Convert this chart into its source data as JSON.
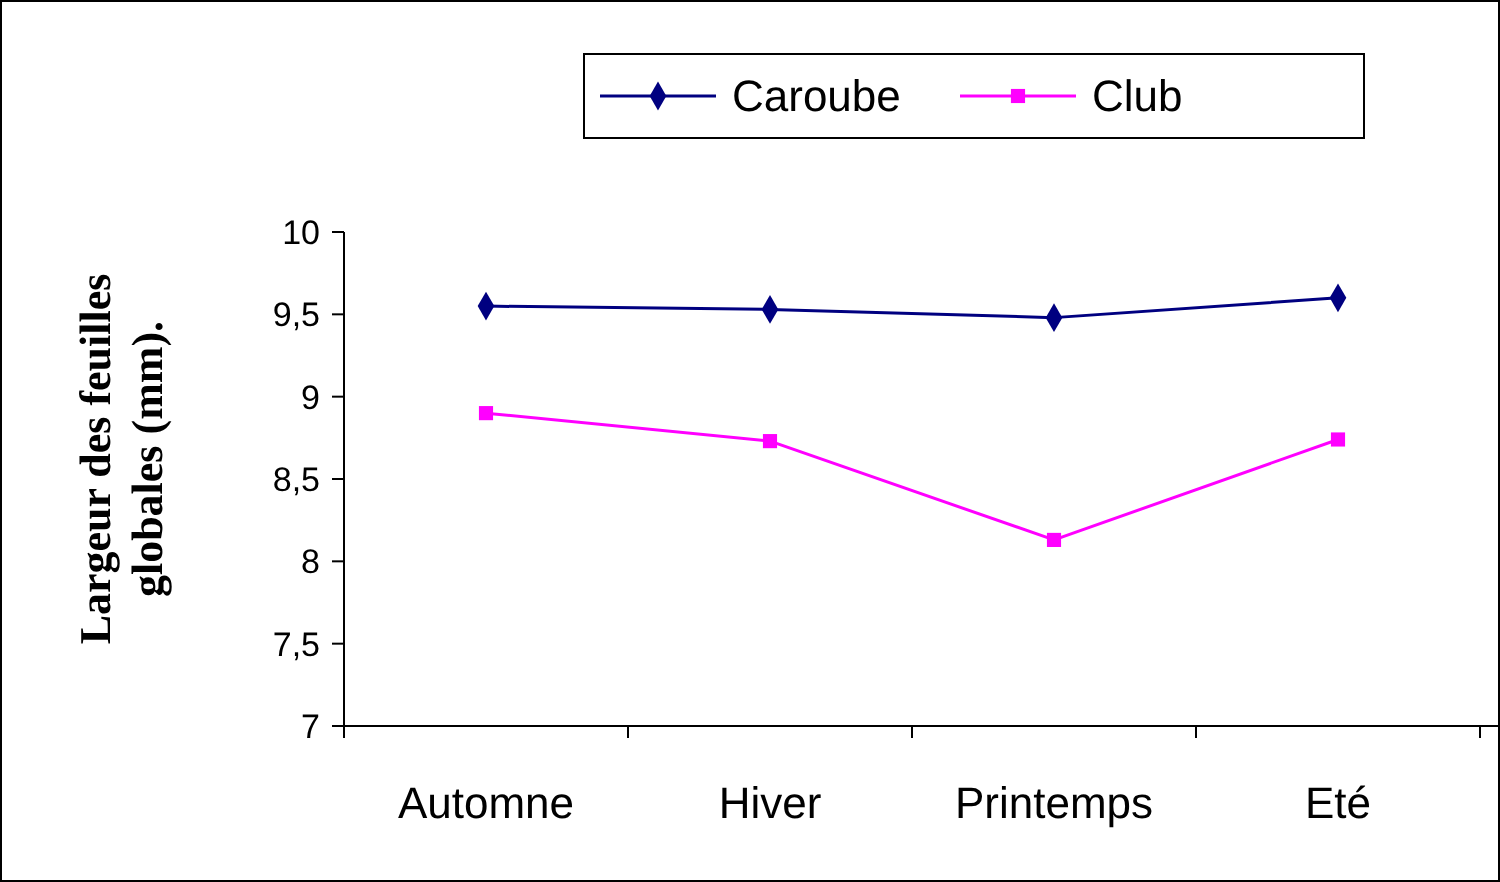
{
  "chart_data": {
    "type": "line",
    "ylabel": "Largeur des feuilles globales (mm).",
    "categories": [
      "Automne",
      "Hiver",
      "Printemps",
      "Eté"
    ],
    "series": [
      {
        "name": "Caroube",
        "color": "#000080",
        "marker": "diamond",
        "values": [
          9.55,
          9.53,
          9.48,
          9.6
        ]
      },
      {
        "name": "Club",
        "color": "#ff00ff",
        "marker": "square",
        "values": [
          8.9,
          8.73,
          8.13,
          8.74
        ]
      }
    ],
    "ylim": [
      7,
      10
    ],
    "yticks": [
      7,
      {
        "value": 7.5,
        "label": "7,5"
      },
      8,
      {
        "value": 8.5,
        "label": "8,5"
      },
      9,
      {
        "value": 9.5,
        "label": "9,5"
      },
      10
    ],
    "grid": false,
    "legend": "top",
    "line_style": "solid"
  }
}
